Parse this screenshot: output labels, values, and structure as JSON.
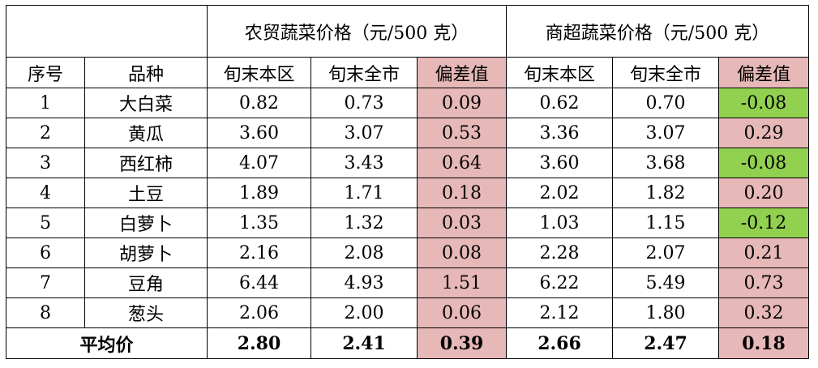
{
  "header": {
    "market_group": "农贸蔬菜价格（元/500 克）",
    "super_group": "商超蔬菜价格（元/500 克）",
    "col_index": "序号",
    "col_variety": "品种",
    "col_local": "旬末本区",
    "col_city": "旬末全市",
    "col_diff": "偏差值"
  },
  "rows": [
    {
      "no": "1",
      "name": "大白菜",
      "m_local": "0.82",
      "m_city": "0.73",
      "m_diff": "0.09",
      "s_local": "0.62",
      "s_city": "0.70",
      "s_diff": "-0.08"
    },
    {
      "no": "2",
      "name": "黄瓜",
      "m_local": "3.60",
      "m_city": "3.07",
      "m_diff": "0.53",
      "s_local": "3.36",
      "s_city": "3.07",
      "s_diff": "0.29"
    },
    {
      "no": "3",
      "name": "西红柿",
      "m_local": "4.07",
      "m_city": "3.43",
      "m_diff": "0.64",
      "s_local": "3.60",
      "s_city": "3.68",
      "s_diff": "-0.08"
    },
    {
      "no": "4",
      "name": "土豆",
      "m_local": "1.89",
      "m_city": "1.71",
      "m_diff": "0.18",
      "s_local": "2.02",
      "s_city": "1.82",
      "s_diff": "0.20"
    },
    {
      "no": "5",
      "name": "白萝卜",
      "m_local": "1.35",
      "m_city": "1.32",
      "m_diff": "0.03",
      "s_local": "1.03",
      "s_city": "1.15",
      "s_diff": "-0.12"
    },
    {
      "no": "6",
      "name": "胡萝卜",
      "m_local": "2.16",
      "m_city": "2.08",
      "m_diff": "0.08",
      "s_local": "2.28",
      "s_city": "2.07",
      "s_diff": "0.21"
    },
    {
      "no": "7",
      "name": "豆角",
      "m_local": "6.44",
      "m_city": "4.93",
      "m_diff": "1.51",
      "s_local": "6.22",
      "s_city": "5.49",
      "s_diff": "0.73"
    },
    {
      "no": "8",
      "name": "葱头",
      "m_local": "2.06",
      "m_city": "2.00",
      "m_diff": "0.06",
      "s_local": "2.12",
      "s_city": "1.80",
      "s_diff": "0.32"
    }
  ],
  "average": {
    "label": "平均价",
    "m_local": "2.80",
    "m_city": "2.41",
    "m_diff": "0.39",
    "s_local": "2.66",
    "s_city": "2.47",
    "s_diff": "0.18"
  },
  "colors": {
    "positive_diff": "#e6b8b7",
    "negative_diff": "#92d050"
  }
}
